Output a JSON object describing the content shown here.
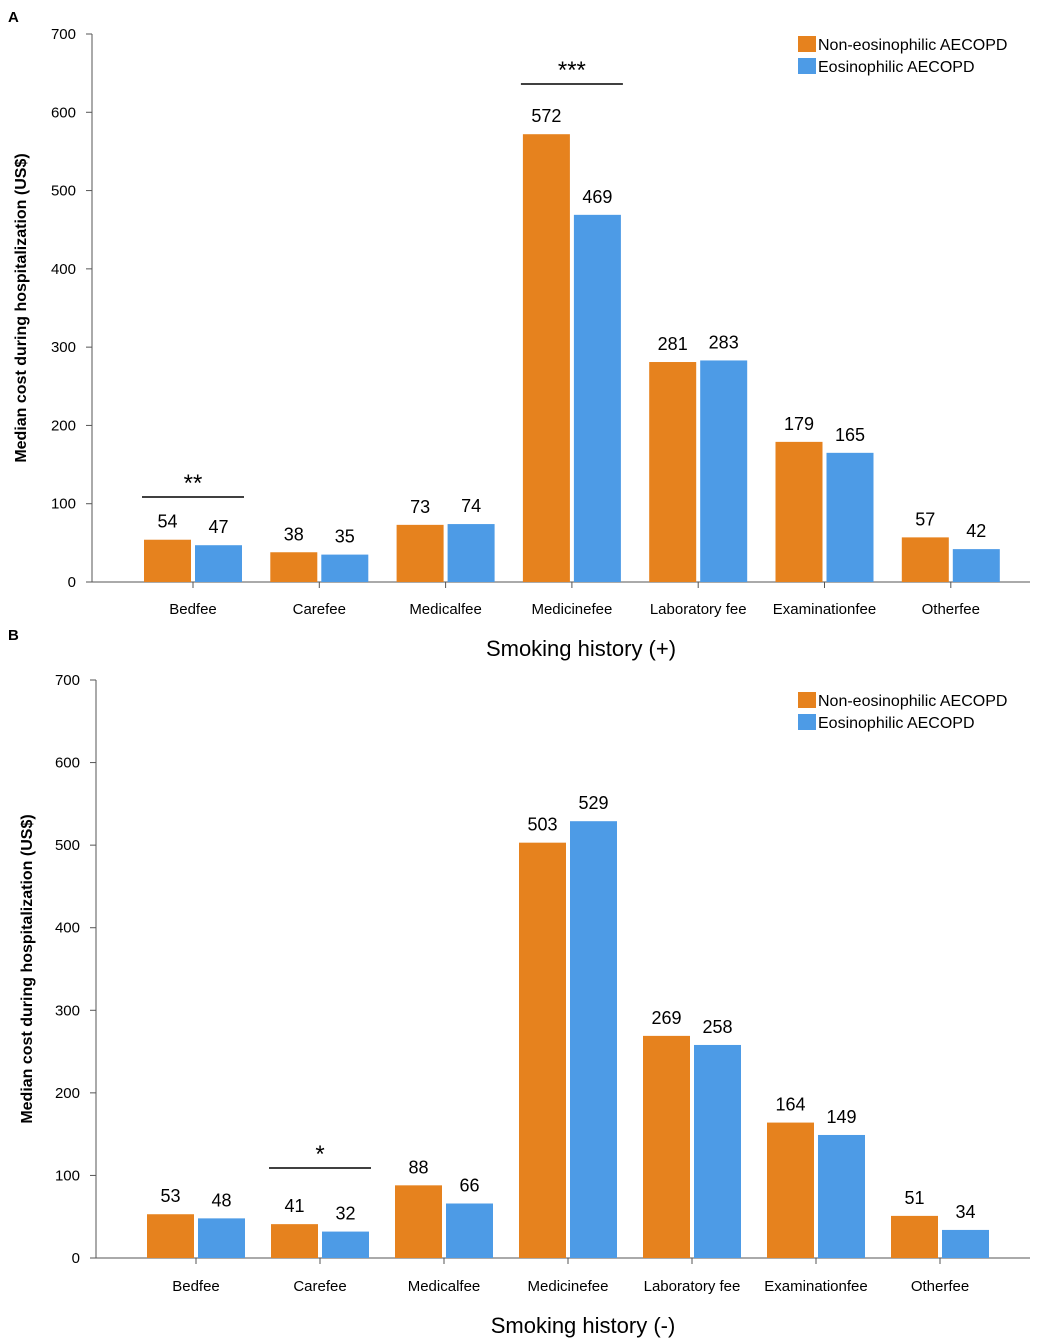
{
  "chart_data": [
    {
      "panel": "A",
      "type": "bar",
      "title": "",
      "xlabel": "Smoking history (+)",
      "ylabel": "Median cost during hospitalization (US$)",
      "ylim": [
        0,
        700
      ],
      "yticks": [
        0,
        100,
        200,
        300,
        400,
        500,
        600,
        700
      ],
      "categories": [
        "Bedfee",
        "Carefee",
        "Medicalfee",
        "Medicinefee",
        "Laboratory fee",
        "Examinationfee",
        "Otherfee"
      ],
      "series": [
        {
          "name": "Non-eosinophilic AECOPD",
          "color": "#e6821e",
          "values": [
            54,
            38,
            73,
            572,
            281,
            179,
            57
          ]
        },
        {
          "name": "Eosinophilic AECOPD",
          "color": "#4d9be6",
          "values": [
            47,
            35,
            74,
            469,
            283,
            165,
            42
          ]
        }
      ],
      "significance": [
        {
          "category_index": 0,
          "label": "**"
        },
        {
          "category_index": 3,
          "label": "***"
        }
      ],
      "legend": "top-right",
      "grid": false
    },
    {
      "panel": "B",
      "type": "bar",
      "title": "",
      "xlabel": "Smoking history (-)",
      "ylabel": "Median cost during hospitalization (US$)",
      "ylim": [
        0,
        700
      ],
      "yticks": [
        0,
        100,
        200,
        300,
        400,
        500,
        600,
        700
      ],
      "categories": [
        "Bedfee",
        "Carefee",
        "Medicalfee",
        "Medicinefee",
        "Laboratory fee",
        "Examinationfee",
        "Otherfee"
      ],
      "series": [
        {
          "name": "Non-eosinophilic AECOPD",
          "color": "#e6821e",
          "values": [
            53,
            41,
            88,
            503,
            269,
            164,
            51
          ]
        },
        {
          "name": "Eosinophilic AECOPD",
          "color": "#4d9be6",
          "values": [
            48,
            32,
            66,
            529,
            258,
            149,
            34
          ]
        }
      ],
      "significance": [
        {
          "category_index": 1,
          "label": "*"
        }
      ],
      "legend": "top-right",
      "grid": false
    }
  ]
}
